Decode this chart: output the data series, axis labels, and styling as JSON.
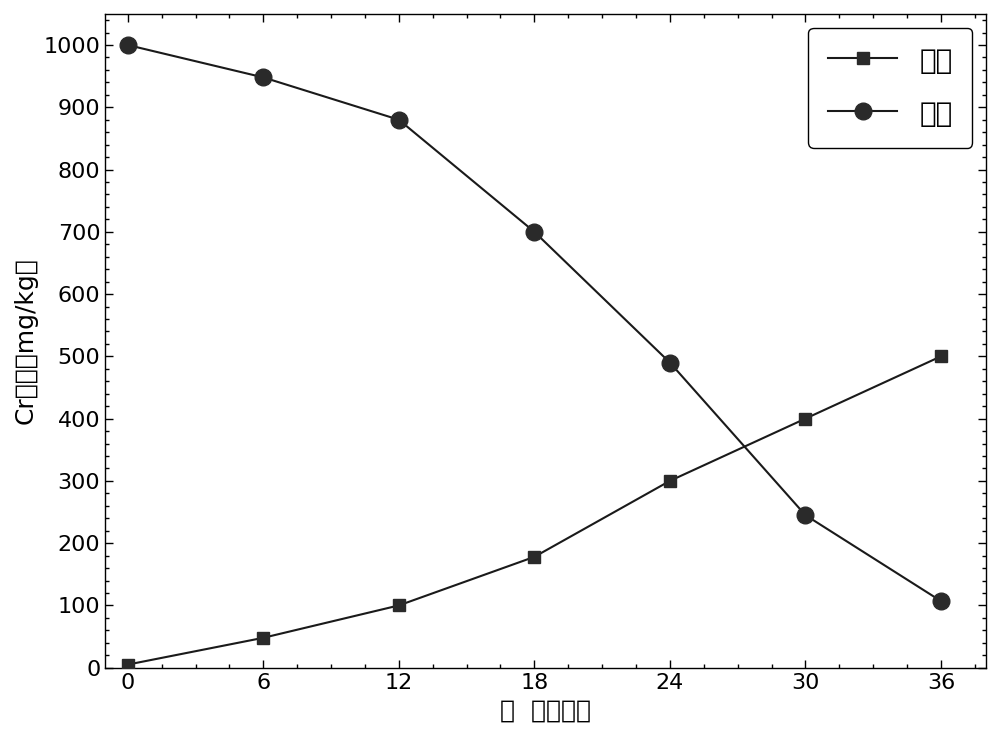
{
  "x_values": [
    0,
    6,
    12,
    18,
    24,
    30,
    36
  ],
  "shanliu_y": [
    5,
    48,
    100,
    178,
    300,
    400,
    500
  ],
  "turang_y": [
    1000,
    948,
    880,
    700,
    490,
    245,
    107
  ],
  "xlabel": "时  间（月）",
  "ylabel": "Cr含量（mg/kg）",
  "legend_shanliu": "沙柳",
  "legend_turang": "土壤",
  "xlim": [
    -1,
    38
  ],
  "ylim": [
    0,
    1050
  ],
  "xticks": [
    0,
    6,
    12,
    18,
    24,
    30,
    36
  ],
  "yticks": [
    0,
    100,
    200,
    300,
    400,
    500,
    600,
    700,
    800,
    900,
    1000
  ],
  "line_color": "#1a1a1a",
  "marker_square": "s",
  "marker_circle": "o",
  "marker_size_sq": 9,
  "marker_size_ci": 12,
  "marker_fill_color": "#2a2a2a",
  "line_width": 1.5,
  "legend_fontsize": 20,
  "axis_label_fontsize": 18,
  "tick_fontsize": 16,
  "background_color": "#ffffff",
  "figure_width": 10.0,
  "figure_height": 7.36
}
